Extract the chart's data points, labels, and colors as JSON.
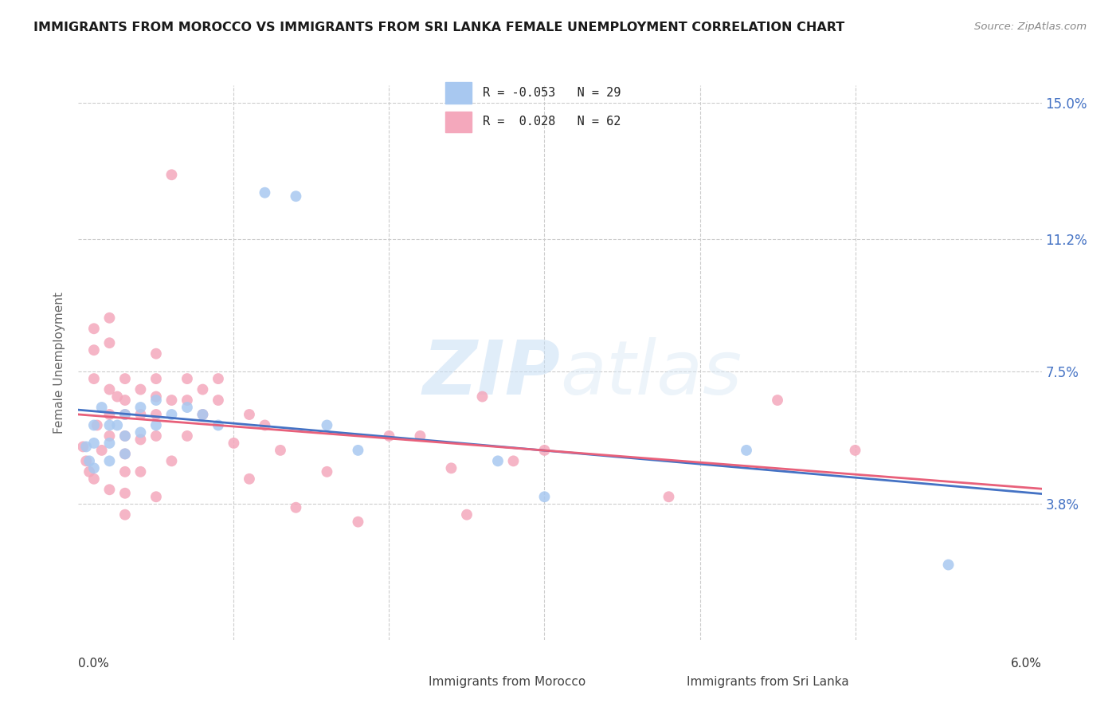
{
  "title": "IMMIGRANTS FROM MOROCCO VS IMMIGRANTS FROM SRI LANKA FEMALE UNEMPLOYMENT CORRELATION CHART",
  "source": "Source: ZipAtlas.com",
  "ylabel": "Female Unemployment",
  "watermark_zip": "ZIP",
  "watermark_atlas": "atlas",
  "morocco_color": "#a8c8f0",
  "srilanka_color": "#f4a8bc",
  "morocco_line_color": "#4472c4",
  "srilanka_line_color": "#e8607a",
  "ylim": [
    0.0,
    0.155
  ],
  "xlim": [
    0.0,
    0.062
  ],
  "y_ticks": [
    0.0,
    0.038,
    0.075,
    0.112,
    0.15
  ],
  "y_tick_labels": [
    "",
    "3.8%",
    "7.5%",
    "11.2%",
    "15.0%"
  ],
  "x_ticks": [
    0.0,
    0.01,
    0.02,
    0.03,
    0.04,
    0.05,
    0.06
  ],
  "legend_r_morocco": "R = -0.053",
  "legend_n_morocco": "N = 29",
  "legend_r_srilanka": "R =  0.028",
  "legend_n_srilanka": "N = 62",
  "legend_label_morocco": "Immigrants from Morocco",
  "legend_label_srilanka": "Immigrants from Sri Lanka",
  "morocco_x": [
    0.0005,
    0.0007,
    0.001,
    0.001,
    0.001,
    0.0015,
    0.002,
    0.002,
    0.002,
    0.0025,
    0.003,
    0.003,
    0.003,
    0.004,
    0.004,
    0.005,
    0.005,
    0.006,
    0.007,
    0.008,
    0.009,
    0.012,
    0.014,
    0.016,
    0.018,
    0.027,
    0.03,
    0.043,
    0.056
  ],
  "morocco_y": [
    0.054,
    0.05,
    0.06,
    0.055,
    0.048,
    0.065,
    0.06,
    0.055,
    0.05,
    0.06,
    0.063,
    0.057,
    0.052,
    0.065,
    0.058,
    0.067,
    0.06,
    0.063,
    0.065,
    0.063,
    0.06,
    0.125,
    0.124,
    0.06,
    0.053,
    0.05,
    0.04,
    0.053,
    0.021
  ],
  "srilanka_x": [
    0.0003,
    0.0005,
    0.0007,
    0.001,
    0.001,
    0.001,
    0.001,
    0.0012,
    0.0015,
    0.002,
    0.002,
    0.002,
    0.002,
    0.002,
    0.002,
    0.0025,
    0.003,
    0.003,
    0.003,
    0.003,
    0.003,
    0.003,
    0.003,
    0.003,
    0.004,
    0.004,
    0.004,
    0.004,
    0.005,
    0.005,
    0.005,
    0.005,
    0.005,
    0.005,
    0.006,
    0.006,
    0.006,
    0.007,
    0.007,
    0.007,
    0.008,
    0.008,
    0.009,
    0.009,
    0.01,
    0.011,
    0.011,
    0.012,
    0.013,
    0.014,
    0.016,
    0.018,
    0.02,
    0.022,
    0.024,
    0.025,
    0.026,
    0.028,
    0.03,
    0.038,
    0.045,
    0.05
  ],
  "srilanka_y": [
    0.054,
    0.05,
    0.047,
    0.087,
    0.081,
    0.073,
    0.045,
    0.06,
    0.053,
    0.09,
    0.083,
    0.07,
    0.063,
    0.057,
    0.042,
    0.068,
    0.073,
    0.067,
    0.063,
    0.057,
    0.052,
    0.047,
    0.041,
    0.035,
    0.07,
    0.063,
    0.056,
    0.047,
    0.08,
    0.073,
    0.068,
    0.063,
    0.057,
    0.04,
    0.13,
    0.067,
    0.05,
    0.073,
    0.067,
    0.057,
    0.07,
    0.063,
    0.073,
    0.067,
    0.055,
    0.063,
    0.045,
    0.06,
    0.053,
    0.037,
    0.047,
    0.033,
    0.057,
    0.057,
    0.048,
    0.035,
    0.068,
    0.05,
    0.053,
    0.04,
    0.067,
    0.053
  ]
}
